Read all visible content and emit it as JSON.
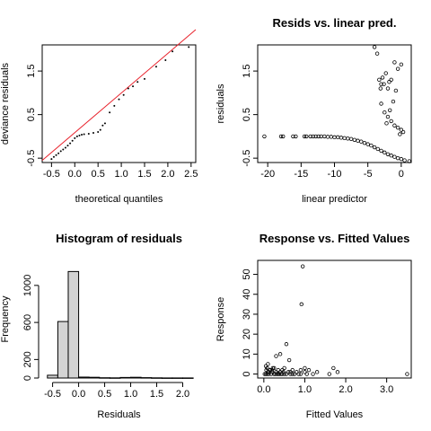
{
  "chart_data": [
    {
      "id": "qq",
      "type": "scatter",
      "title": "",
      "xlabel": "theoretical quantiles",
      "ylabel": "deviance residuals",
      "xlim": [
        -0.7,
        2.6
      ],
      "ylim": [
        -0.6,
        2.1
      ],
      "xticks": [
        -0.5,
        0.0,
        0.5,
        1.0,
        1.5,
        2.0,
        2.5
      ],
      "xtick_labels": [
        "-0.5",
        "0.0",
        "0.5",
        "1.0",
        "1.5",
        "2.0",
        "2.5"
      ],
      "yticks": [
        -0.5,
        0.5,
        1.5
      ],
      "ytick_labels": [
        "-0.5",
        "0.5",
        "1.5"
      ],
      "reference_line": {
        "x": [
          -0.7,
          2.6
        ],
        "y": [
          -0.55,
          2.45
        ],
        "color": "#e8202a"
      },
      "points": [
        [
          -0.5,
          -0.52
        ],
        [
          -0.45,
          -0.47
        ],
        [
          -0.4,
          -0.43
        ],
        [
          -0.35,
          -0.39
        ],
        [
          -0.3,
          -0.34
        ],
        [
          -0.25,
          -0.3
        ],
        [
          -0.2,
          -0.26
        ],
        [
          -0.15,
          -0.21
        ],
        [
          -0.1,
          -0.16
        ],
        [
          -0.05,
          -0.1
        ],
        [
          0.0,
          -0.04
        ],
        [
          0.05,
          0.0
        ],
        [
          0.1,
          0.02
        ],
        [
          0.15,
          0.04
        ],
        [
          0.2,
          0.05
        ],
        [
          0.3,
          0.06
        ],
        [
          0.4,
          0.08
        ],
        [
          0.5,
          0.1
        ],
        [
          0.55,
          0.15
        ],
        [
          0.6,
          0.25
        ],
        [
          0.65,
          0.3
        ],
        [
          0.75,
          0.55
        ],
        [
          0.85,
          0.7
        ],
        [
          0.95,
          0.85
        ],
        [
          1.05,
          0.95
        ],
        [
          1.15,
          1.1
        ],
        [
          1.25,
          1.15
        ],
        [
          1.35,
          1.25
        ],
        [
          1.5,
          1.32
        ],
        [
          1.75,
          1.6
        ],
        [
          1.95,
          1.75
        ],
        [
          2.1,
          1.95
        ],
        [
          2.45,
          2.05
        ]
      ]
    },
    {
      "id": "resid-vs-pred",
      "type": "scatter",
      "title": "Resids vs. linear pred.",
      "xlabel": "linear predictor",
      "ylabel": "residuals",
      "xlim": [
        -21.5,
        1.5
      ],
      "ylim": [
        -0.6,
        2.1
      ],
      "xticks": [
        -20,
        -15,
        -10,
        -5,
        0
      ],
      "xtick_labels": [
        "-20",
        "-15",
        "-10",
        "-5",
        "0"
      ],
      "yticks": [
        -0.5,
        0.5,
        1.5
      ],
      "ytick_labels": [
        "-0.5",
        "0.5",
        "1.5"
      ],
      "points": [
        [
          -20.5,
          0.0
        ],
        [
          -18.0,
          0.0
        ],
        [
          -17.7,
          0.0
        ],
        [
          -16.2,
          0.0
        ],
        [
          -15.8,
          0.0
        ],
        [
          -14.5,
          0.0
        ],
        [
          -14.2,
          0.0
        ],
        [
          -13.6,
          0.0
        ],
        [
          -13.2,
          0.0
        ],
        [
          -12.8,
          0.0
        ],
        [
          -12.4,
          0.0
        ],
        [
          -12.0,
          0.0
        ],
        [
          -11.5,
          0.0
        ],
        [
          -11.0,
          -0.01
        ],
        [
          -10.5,
          -0.01
        ],
        [
          -10.0,
          -0.02
        ],
        [
          -9.5,
          -0.02
        ],
        [
          -9.0,
          -0.03
        ],
        [
          -8.5,
          -0.04
        ],
        [
          -8.0,
          -0.05
        ],
        [
          -7.5,
          -0.06
        ],
        [
          -7.0,
          -0.08
        ],
        [
          -6.5,
          -0.1
        ],
        [
          -6.0,
          -0.12
        ],
        [
          -5.5,
          -0.15
        ],
        [
          -5.0,
          -0.18
        ],
        [
          -4.5,
          -0.21
        ],
        [
          -4.0,
          -0.25
        ],
        [
          -3.5,
          -0.29
        ],
        [
          -3.0,
          -0.33
        ],
        [
          -2.5,
          -0.37
        ],
        [
          -2.0,
          -0.41
        ],
        [
          -1.5,
          -0.44
        ],
        [
          -1.0,
          -0.47
        ],
        [
          -0.5,
          -0.5
        ],
        [
          0.0,
          -0.52
        ],
        [
          0.5,
          -0.55
        ],
        [
          1.2,
          -0.57
        ],
        [
          -4.0,
          2.05
        ],
        [
          -3.6,
          1.9
        ],
        [
          -3.3,
          1.3
        ],
        [
          -3.0,
          1.2
        ],
        [
          -3.1,
          1.1
        ],
        [
          -2.8,
          1.35
        ],
        [
          -2.6,
          1.2
        ],
        [
          -2.3,
          1.45
        ],
        [
          -2.0,
          1.1
        ],
        [
          -1.8,
          1.25
        ],
        [
          -1.5,
          1.3
        ],
        [
          -1.0,
          1.7
        ],
        [
          -0.5,
          1.55
        ],
        [
          0.0,
          1.65
        ],
        [
          -0.8,
          1.05
        ],
        [
          -3.0,
          0.75
        ],
        [
          -2.5,
          0.55
        ],
        [
          -2.0,
          0.45
        ],
        [
          -1.7,
          0.6
        ],
        [
          -1.2,
          0.8
        ],
        [
          -1.5,
          0.35
        ],
        [
          -1.0,
          0.25
        ],
        [
          -0.5,
          0.2
        ],
        [
          0.0,
          0.15
        ],
        [
          0.3,
          0.1
        ],
        [
          -2.2,
          0.3
        ],
        [
          -0.2,
          0.05
        ]
      ]
    },
    {
      "id": "histogram",
      "type": "bar",
      "title": "Histogram of residuals",
      "xlabel": "Residuals",
      "ylabel": "Frequency",
      "xlim": [
        -0.7,
        2.25
      ],
      "ylim": [
        0,
        1270
      ],
      "xticks": [
        -0.5,
        0.0,
        0.5,
        1.0,
        1.5,
        2.0
      ],
      "xtick_labels": [
        "-0.5",
        "0.0",
        "0.5",
        "1.0",
        "1.5",
        "2.0"
      ],
      "yticks": [
        0,
        200,
        600,
        1000
      ],
      "ytick_labels": [
        "0",
        "200",
        "600",
        "1000"
      ],
      "bins": [
        {
          "from": -0.6,
          "to": -0.4,
          "count": 30
        },
        {
          "from": -0.4,
          "to": -0.2,
          "count": 610
        },
        {
          "from": -0.2,
          "to": 0.0,
          "count": 1150
        },
        {
          "from": 0.0,
          "to": 0.2,
          "count": 10
        },
        {
          "from": 0.2,
          "to": 0.4,
          "count": 8
        },
        {
          "from": 0.4,
          "to": 0.6,
          "count": 3
        },
        {
          "from": 0.6,
          "to": 0.8,
          "count": 2
        },
        {
          "from": 0.8,
          "to": 1.0,
          "count": 6
        },
        {
          "from": 1.0,
          "to": 1.2,
          "count": 8
        },
        {
          "from": 1.2,
          "to": 1.4,
          "count": 4
        },
        {
          "from": 1.4,
          "to": 1.6,
          "count": 2
        },
        {
          "from": 1.6,
          "to": 1.8,
          "count": 1
        },
        {
          "from": 1.8,
          "to": 2.0,
          "count": 1
        },
        {
          "from": 2.0,
          "to": 2.2,
          "count": 1
        }
      ]
    },
    {
      "id": "response-vs-fitted",
      "type": "scatter",
      "title": "Response vs. Fitted Values",
      "xlabel": "Fitted Values",
      "ylabel": "Response",
      "xlim": [
        -0.15,
        3.6
      ],
      "ylim": [
        -2,
        57
      ],
      "xticks": [
        0.0,
        1.0,
        2.0,
        3.0
      ],
      "xtick_labels": [
        "0.0",
        "1.0",
        "2.0",
        "3.0"
      ],
      "yticks": [
        0,
        10,
        20,
        30,
        40,
        50
      ],
      "ytick_labels": [
        "0",
        "10",
        "20",
        "30",
        "40",
        "50"
      ],
      "points": [
        [
          0.02,
          0
        ],
        [
          0.05,
          0
        ],
        [
          0.08,
          0
        ],
        [
          0.1,
          1
        ],
        [
          0.12,
          0
        ],
        [
          0.15,
          2
        ],
        [
          0.18,
          0
        ],
        [
          0.2,
          1
        ],
        [
          0.22,
          3
        ],
        [
          0.25,
          0
        ],
        [
          0.28,
          0
        ],
        [
          0.3,
          1
        ],
        [
          0.32,
          0
        ],
        [
          0.35,
          2
        ],
        [
          0.38,
          0
        ],
        [
          0.4,
          1
        ],
        [
          0.42,
          0
        ],
        [
          0.45,
          0
        ],
        [
          0.48,
          1
        ],
        [
          0.5,
          0
        ],
        [
          0.55,
          0
        ],
        [
          0.6,
          1
        ],
        [
          0.65,
          0
        ],
        [
          0.7,
          0
        ],
        [
          0.75,
          0
        ],
        [
          0.8,
          1
        ],
        [
          0.85,
          0
        ],
        [
          0.9,
          0
        ],
        [
          1.0,
          1
        ],
        [
          1.05,
          0
        ],
        [
          1.1,
          2
        ],
        [
          1.3,
          1
        ],
        [
          1.6,
          0
        ],
        [
          1.7,
          3
        ],
        [
          1.8,
          1
        ],
        [
          3.5,
          0
        ],
        [
          0.05,
          4
        ],
        [
          0.1,
          5
        ],
        [
          0.08,
          3
        ],
        [
          0.2,
          2
        ],
        [
          0.3,
          9
        ],
        [
          0.4,
          10
        ],
        [
          0.5,
          3
        ],
        [
          0.55,
          15
        ],
        [
          0.62,
          7
        ],
        [
          0.7,
          2
        ],
        [
          0.9,
          2
        ],
        [
          0.92,
          35
        ],
        [
          0.95,
          54
        ],
        [
          1.0,
          3
        ],
        [
          0.15,
          2
        ],
        [
          0.25,
          3
        ],
        [
          0.45,
          2
        ],
        [
          0.65,
          1
        ],
        [
          1.2,
          0
        ],
        [
          0.35,
          0
        ],
        [
          0.12,
          1
        ],
        [
          0.06,
          2
        ]
      ]
    }
  ]
}
